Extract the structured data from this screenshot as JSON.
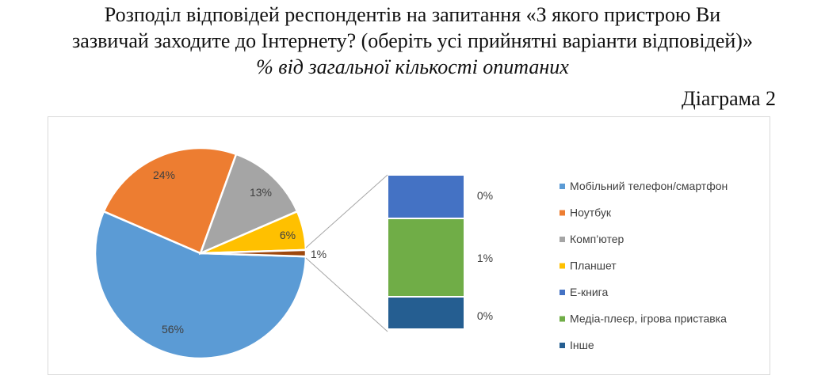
{
  "header": {
    "title_line1": "Розподіл відповідей респондентів на запитання «З якого пристрою Ви",
    "title_line2": "зазвичай заходите до Інтернету? (оберіть усі прийнятні варіанти відповідей)»",
    "subtitle": "% від загальної кількості опитаних",
    "diagram_label": "Діаграма 2"
  },
  "chart_data": {
    "type": "pie",
    "subtype": "bar-of-pie",
    "legend_position": "right",
    "series": [
      {
        "name": "Мобільний телефон/смартфон",
        "value": 56,
        "label": "56%",
        "color": "#5b9bd5",
        "group": "pie"
      },
      {
        "name": "Ноутбук",
        "value": 24,
        "label": "24%",
        "color": "#ed7d31",
        "group": "pie"
      },
      {
        "name": "Комп’ютер",
        "value": 13,
        "label": "13%",
        "color": "#a5a5a5",
        "group": "pie"
      },
      {
        "name": "Планшет",
        "value": 6,
        "label": "6%",
        "color": "#ffc000",
        "group": "pie"
      },
      {
        "name": "Е-книга",
        "value": 0,
        "label": "0%",
        "color": "#4472c4",
        "group": "bar"
      },
      {
        "name": "Медіа-плеєр, ігрова приставка",
        "value": 1,
        "label": "1%",
        "color": "#70ad47",
        "group": "bar"
      },
      {
        "name": "Інше",
        "value": 0,
        "label": "0%",
        "color": "#255e91",
        "group": "bar"
      }
    ],
    "other_slice": {
      "value": 1,
      "label": "1%",
      "color": "#9e480e"
    }
  }
}
